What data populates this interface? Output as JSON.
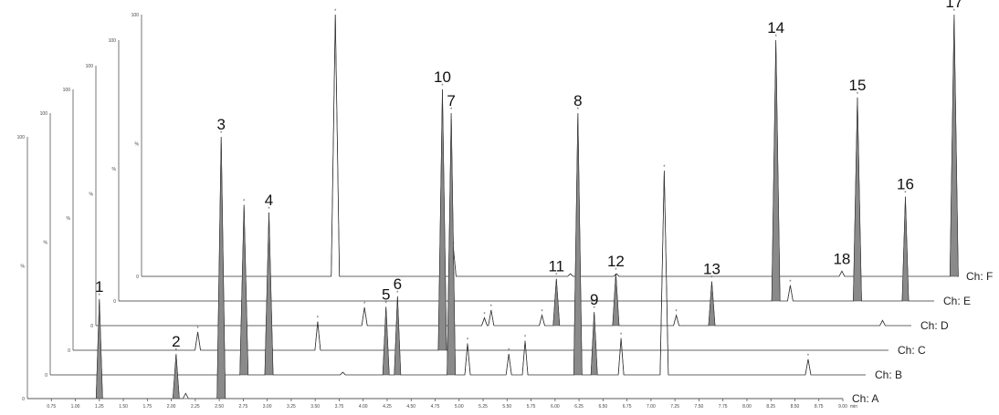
{
  "chart_data": {
    "type": "line",
    "x_ticks": [
      "0.75",
      "1.00",
      "1.25",
      "1.50",
      "1.75",
      "2.00",
      "2.25",
      "2.50",
      "2.75",
      "3.00",
      "3.25",
      "3.50",
      "3.75",
      "4.00",
      "4.25",
      "4.50",
      "4.75",
      "5.00",
      "5.25",
      "5.50",
      "5.75",
      "6.00",
      "6.25",
      "6.50",
      "6.75",
      "7.00",
      "7.25",
      "7.50",
      "7.75",
      "8.00",
      "8.25",
      "8.50",
      "8.75",
      "9.00"
    ],
    "x_unit_label": "min",
    "xlim": [
      0.5,
      9.0
    ],
    "ylim": [
      0,
      100
    ],
    "y_tick_labels": [
      "0",
      "%",
      "100"
    ],
    "channels": [
      {
        "name": "Ch: A",
        "peaks": [
          {
            "rt": 1.25,
            "height": 38,
            "filled": true,
            "label": "1"
          },
          {
            "rt": 2.05,
            "height": 17,
            "filled": true,
            "label": "2"
          },
          {
            "rt": 2.15,
            "height": 2,
            "filled": false,
            "label": ""
          },
          {
            "rt": 2.52,
            "height": 100,
            "filled": true,
            "label": "3"
          }
        ]
      },
      {
        "name": "Ch: B",
        "peaks": [
          {
            "rt": 2.52,
            "height": 65,
            "filled": true,
            "label": ""
          },
          {
            "rt": 2.78,
            "height": 62,
            "filled": true,
            "label": "4"
          },
          {
            "rt": 3.55,
            "height": 1,
            "filled": false,
            "label": ""
          },
          {
            "rt": 4.0,
            "height": 26,
            "filled": true,
            "label": "5"
          },
          {
            "rt": 4.12,
            "height": 30,
            "filled": true,
            "label": "6"
          },
          {
            "rt": 4.68,
            "height": 100,
            "filled": true,
            "label": "7"
          },
          {
            "rt": 4.85,
            "height": 12,
            "filled": false,
            "label": ""
          },
          {
            "rt": 5.28,
            "height": 8,
            "filled": false,
            "label": ""
          },
          {
            "rt": 5.45,
            "height": 13,
            "filled": false,
            "label": ""
          },
          {
            "rt": 6.0,
            "height": 100,
            "filled": true,
            "label": "8"
          },
          {
            "rt": 6.17,
            "height": 24,
            "filled": true,
            "label": "9"
          },
          {
            "rt": 6.45,
            "height": 14,
            "filled": false,
            "label": ""
          },
          {
            "rt": 6.9,
            "height": 78,
            "filled": false,
            "label": ""
          },
          {
            "rt": 8.4,
            "height": 6,
            "filled": false,
            "label": ""
          }
        ]
      },
      {
        "name": "Ch: C",
        "peaks": [
          {
            "rt": 1.8,
            "height": 7,
            "filled": false,
            "label": ""
          },
          {
            "rt": 2.55,
            "height": 10,
            "filled": false,
            "label": ""
          },
          {
            "rt": 3.05,
            "height": 11,
            "filled": false,
            "label": ""
          },
          {
            "rt": 4.35,
            "height": 100,
            "filled": true,
            "label": "10"
          }
        ]
      },
      {
        "name": "Ch: D",
        "peaks": [
          {
            "rt": 3.3,
            "height": 7,
            "filled": false,
            "label": ""
          },
          {
            "rt": 4.55,
            "height": 3,
            "filled": false,
            "label": ""
          },
          {
            "rt": 4.62,
            "height": 6,
            "filled": false,
            "label": ""
          },
          {
            "rt": 5.15,
            "height": 4,
            "filled": false,
            "label": ""
          },
          {
            "rt": 5.3,
            "height": 18,
            "filled": true,
            "label": "11"
          },
          {
            "rt": 5.92,
            "height": 20,
            "filled": true,
            "label": "12"
          },
          {
            "rt": 6.55,
            "height": 4,
            "filled": false,
            "label": ""
          },
          {
            "rt": 6.92,
            "height": 17,
            "filled": true,
            "label": "13"
          },
          {
            "rt": 8.7,
            "height": 2,
            "filled": false,
            "label": ""
          }
        ]
      },
      {
        "name": "Ch: E",
        "peaks": [
          {
            "rt": 7.35,
            "height": 100,
            "filled": true,
            "label": "14"
          },
          {
            "rt": 7.5,
            "height": 6,
            "filled": false,
            "label": ""
          },
          {
            "rt": 8.2,
            "height": 78,
            "filled": true,
            "label": "15"
          },
          {
            "rt": 8.7,
            "height": 40,
            "filled": true,
            "label": "16"
          },
          {
            "rt": 9.45,
            "height": 5,
            "filled": false,
            "label": ""
          }
        ]
      },
      {
        "name": "Ch: F",
        "peaks": [
          {
            "rt": 2.52,
            "height": 100,
            "filled": false,
            "label": ""
          },
          {
            "rt": 3.75,
            "height": 11,
            "filled": false,
            "label": ""
          },
          {
            "rt": 4.97,
            "height": 1,
            "filled": false,
            "label": ""
          },
          {
            "rt": 5.45,
            "height": 1,
            "filled": false,
            "label": ""
          },
          {
            "rt": 7.8,
            "height": 2,
            "filled": false,
            "label": "18"
          },
          {
            "rt": 8.97,
            "height": 100,
            "filled": true,
            "label": "17"
          }
        ]
      }
    ]
  }
}
